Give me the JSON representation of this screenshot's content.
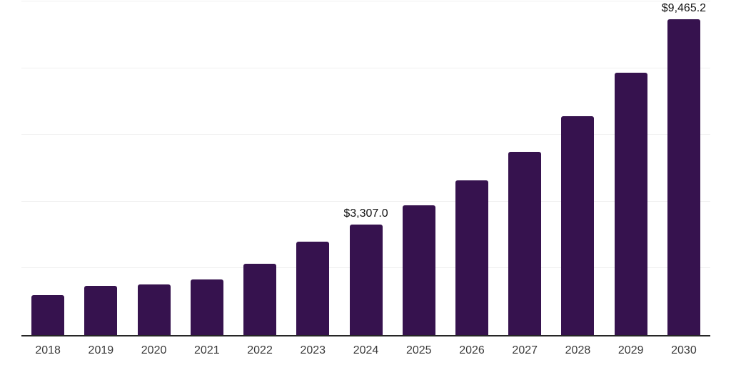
{
  "chart_data": {
    "type": "bar",
    "title": "",
    "xlabel": "",
    "ylabel": "",
    "categories": [
      "2018",
      "2019",
      "2020",
      "2021",
      "2022",
      "2023",
      "2024",
      "2025",
      "2026",
      "2027",
      "2028",
      "2029",
      "2030"
    ],
    "values": [
      1200,
      1470,
      1520,
      1670,
      2130,
      2800,
      3307.0,
      3880,
      4630,
      5490,
      6550,
      7860,
      9465.2
    ],
    "value_labels": [
      "",
      "",
      "",
      "",
      "",
      "",
      "$3,307.0",
      "",
      "",
      "",
      "",
      "",
      "$9,465.2"
    ],
    "ylim": [
      0,
      10000
    ],
    "grid_step": 2000,
    "grid_visible": true,
    "y_tick_labels_visible": false,
    "legend_position": "none",
    "colors": {
      "bar": "#36124E",
      "axis": "#262626",
      "gridline": "#F0F0F0",
      "tick_label": "#3A3A3A",
      "value_label": "#111111",
      "background": "#FFFFFF"
    }
  }
}
